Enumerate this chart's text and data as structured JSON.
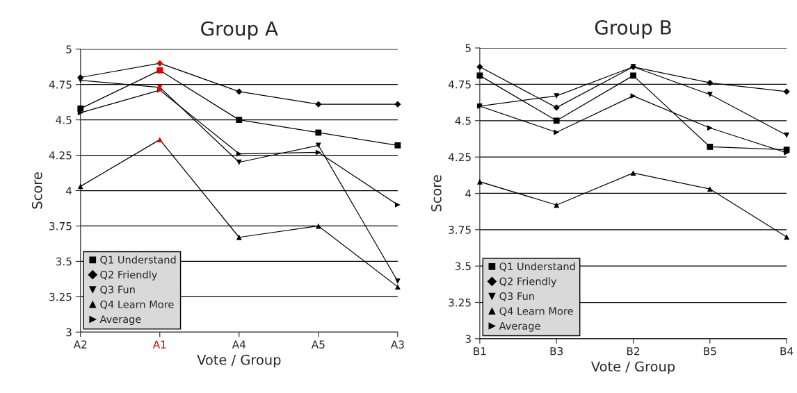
{
  "chart_data": [
    {
      "type": "line",
      "title": "Group A",
      "xlabel": "Vote / Group",
      "ylabel": "Score",
      "categories": [
        "A2",
        "A1",
        "A4",
        "A5",
        "A3"
      ],
      "ylim": [
        3,
        5
      ],
      "yticks": [
        3,
        3.25,
        3.5,
        3.75,
        4,
        4.25,
        4.5,
        4.75,
        5
      ],
      "grid": "y",
      "legend": "bottom left",
      "series": [
        {
          "name": "Q1 Understand",
          "color": "#000000",
          "marker": "square",
          "colors": [
            "#000000",
            "#e00000",
            "#000000",
            "#000000",
            "#000000"
          ],
          "values": [
            4.58,
            4.85,
            4.5,
            4.41,
            4.32
          ]
        },
        {
          "name": "Q2 Friendly",
          "color": "#000000",
          "marker": "diamond",
          "colors": [
            "#000000",
            "#e00000",
            "#000000",
            "#000000",
            "#000000"
          ],
          "values": [
            4.8,
            4.9,
            4.7,
            4.61,
            4.61
          ]
        },
        {
          "name": "Q3 Fun",
          "color": "#000000",
          "marker": "triangle-down",
          "colors": [
            "#000000",
            "#e00000",
            "#000000",
            "#000000",
            "#000000"
          ],
          "values": [
            4.78,
            4.73,
            4.2,
            4.32,
            3.36
          ]
        },
        {
          "name": "Q4 Learn More",
          "color": "#000000",
          "marker": "triangle",
          "colors": [
            "#000000",
            "#e00000",
            "#000000",
            "#000000",
            "#000000"
          ],
          "values": [
            4.03,
            4.36,
            3.67,
            3.75,
            3.32
          ]
        },
        {
          "name": "Average",
          "color": "#000000",
          "marker": "triangle-right",
          "colors": [
            "#000000",
            "#e00000",
            "#000000",
            "#000000",
            "#000000"
          ],
          "values": [
            4.55,
            4.71,
            4.26,
            4.27,
            3.9
          ]
        }
      ]
    },
    {
      "type": "line",
      "title": "Group B",
      "xlabel": "Vote / Group",
      "ylabel": "Score",
      "categories": [
        "B1",
        "B3",
        "B2",
        "B5",
        "B4"
      ],
      "ylim": [
        3,
        5
      ],
      "yticks": [
        3,
        3.25,
        3.5,
        3.75,
        4,
        4.25,
        4.5,
        4.75,
        5
      ],
      "grid": "y",
      "legend": "bottom left",
      "series": [
        {
          "name": "Q1 Understand",
          "color": "#000000",
          "marker": "square",
          "values": [
            4.81,
            4.5,
            4.81,
            4.32,
            4.3
          ]
        },
        {
          "name": "Q2 Friendly",
          "color": "#000000",
          "marker": "diamond",
          "values": [
            4.87,
            4.59,
            4.87,
            4.76,
            4.7
          ]
        },
        {
          "name": "Q3 Fun",
          "color": "#000000",
          "marker": "triangle-down",
          "values": [
            4.6,
            4.67,
            4.87,
            4.68,
            4.4
          ]
        },
        {
          "name": "Q4 Learn More",
          "color": "#000000",
          "marker": "triangle",
          "values": [
            4.08,
            3.92,
            4.14,
            4.03,
            3.7
          ]
        },
        {
          "name": "Average",
          "color": "#000000",
          "marker": "triangle-right",
          "values": [
            4.6,
            4.42,
            4.67,
            4.45,
            4.28
          ]
        }
      ]
    }
  ]
}
